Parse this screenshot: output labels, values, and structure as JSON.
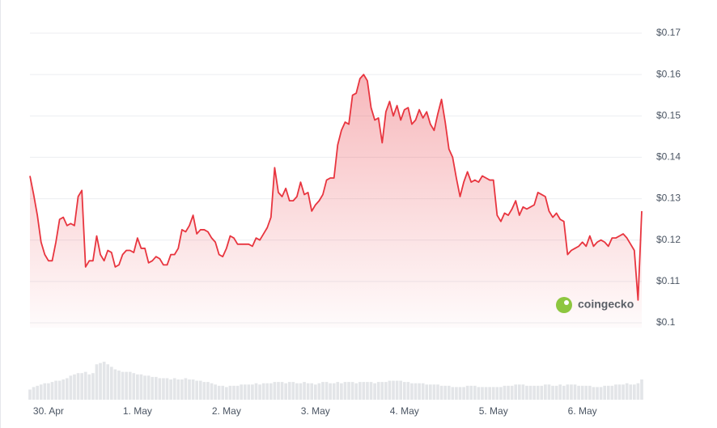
{
  "chart_data": {
    "type": "line",
    "watermark": "coingecko",
    "categories": [
      null,
      null,
      null,
      null,
      null,
      "30. Apr",
      null,
      null,
      null,
      null,
      null,
      null,
      null,
      null,
      null,
      null,
      null,
      null,
      null,
      null,
      null,
      null,
      null,
      null,
      null,
      null,
      null,
      null,
      null,
      "1. May",
      null,
      null,
      null,
      null,
      null,
      null,
      null,
      null,
      null,
      null,
      null,
      null,
      null,
      null,
      null,
      null,
      null,
      null,
      null,
      null,
      null,
      null,
      null,
      "2. May",
      null,
      null,
      null,
      null,
      null,
      null,
      null,
      null,
      null,
      null,
      null,
      null,
      null,
      null,
      null,
      null,
      null,
      null,
      null,
      null,
      null,
      null,
      null,
      "3. May",
      null,
      null,
      null,
      null,
      null,
      null,
      null,
      null,
      null,
      null,
      null,
      null,
      null,
      null,
      null,
      null,
      null,
      null,
      null,
      null,
      null,
      null,
      null,
      "4. May",
      null,
      null,
      null,
      null,
      null,
      null,
      null,
      null,
      null,
      null,
      null,
      null,
      null,
      null,
      null,
      null,
      null,
      null,
      null,
      null,
      null,
      null,
      null,
      "5. May",
      null,
      null,
      null,
      null,
      null,
      null,
      null,
      null,
      null,
      null,
      null,
      null,
      null,
      null,
      null,
      null,
      null,
      null,
      null,
      null,
      null,
      null,
      null,
      "6. May",
      null,
      null,
      null,
      null,
      null,
      null,
      null,
      null,
      null,
      null,
      null,
      null,
      null,
      null,
      null,
      null
    ],
    "series": [
      {
        "color": "#e8353f",
        "values": [
          0.1355,
          0.131,
          0.126,
          0.1195,
          0.1165,
          0.115,
          0.115,
          0.1195,
          0.125,
          0.1255,
          0.1235,
          0.124,
          0.1235,
          0.1305,
          0.132,
          0.1135,
          0.115,
          0.115,
          0.121,
          0.1165,
          0.115,
          0.1175,
          0.117,
          0.1135,
          0.114,
          0.1165,
          0.1175,
          0.1175,
          0.117,
          0.1205,
          0.118,
          0.118,
          0.1145,
          0.115,
          0.116,
          0.1155,
          0.114,
          0.114,
          0.1165,
          0.1165,
          0.118,
          0.1225,
          0.122,
          0.1235,
          0.126,
          0.1215,
          0.1225,
          0.1225,
          0.122,
          0.1205,
          0.1195,
          0.1165,
          0.116,
          0.118,
          0.121,
          0.1205,
          0.119,
          0.119,
          0.119,
          0.119,
          0.1185,
          0.1205,
          0.12,
          0.1215,
          0.123,
          0.1255,
          0.1375,
          0.1315,
          0.1305,
          0.1325,
          0.1295,
          0.1295,
          0.1305,
          0.134,
          0.131,
          0.1315,
          0.127,
          0.1285,
          0.1295,
          0.131,
          0.1345,
          0.135,
          0.135,
          0.143,
          0.1465,
          0.1485,
          0.148,
          0.155,
          0.1555,
          0.159,
          0.16,
          0.1585,
          0.152,
          0.149,
          0.1495,
          0.1435,
          0.151,
          0.1535,
          0.15,
          0.1525,
          0.149,
          0.1515,
          0.152,
          0.148,
          0.149,
          0.1515,
          0.1495,
          0.151,
          0.148,
          0.1465,
          0.1505,
          0.154,
          0.1485,
          0.142,
          0.14,
          0.135,
          0.1305,
          0.134,
          0.1365,
          0.134,
          0.1345,
          0.134,
          0.1355,
          0.135,
          0.1345,
          0.1345,
          0.126,
          0.1245,
          0.1265,
          0.126,
          0.1275,
          0.1295,
          0.126,
          0.128,
          0.1275,
          0.128,
          0.1285,
          0.1315,
          0.131,
          0.1305,
          0.127,
          0.1255,
          0.1265,
          0.125,
          0.1245,
          0.1165,
          0.1175,
          0.118,
          0.1185,
          0.1195,
          0.1185,
          0.121,
          0.1185,
          0.1195,
          0.12,
          0.1195,
          0.1185,
          0.1205,
          0.1205,
          0.121,
          0.1215,
          0.1205,
          0.119,
          0.1175,
          0.1055,
          0.127
        ]
      },
      {
        "color": "#e3e5e8",
        "axis": "y2",
        "values": [
          8,
          10,
          11,
          12,
          13,
          13,
          14,
          15,
          15,
          16,
          17,
          19,
          20,
          21,
          21,
          22,
          20,
          21,
          28,
          29,
          30,
          28,
          26,
          24,
          23,
          22,
          22,
          22,
          21,
          20,
          20,
          19,
          19,
          18,
          18,
          17,
          17,
          17,
          16,
          17,
          16,
          16,
          17,
          16,
          16,
          15,
          15,
          14,
          14,
          13,
          12,
          11,
          11,
          10,
          11,
          11,
          11,
          12,
          12,
          12,
          12,
          13,
          12,
          13,
          13,
          13,
          14,
          14,
          14,
          13,
          14,
          14,
          13,
          13,
          14,
          13,
          13,
          12,
          13,
          14,
          14,
          13,
          13,
          14,
          13,
          14,
          14,
          14,
          13,
          14,
          14,
          14,
          14,
          13,
          14,
          14,
          14,
          15,
          15,
          15,
          15,
          14,
          14,
          13,
          13,
          13,
          13,
          12,
          12,
          12,
          12,
          11,
          11,
          11,
          10,
          10,
          10,
          10,
          11,
          11,
          11,
          10,
          10,
          10,
          10,
          10,
          10,
          10,
          11,
          11,
          11,
          12,
          12,
          12,
          11,
          11,
          11,
          11,
          11,
          12,
          12,
          11,
          11,
          12,
          11,
          12,
          12,
          12,
          11,
          11,
          11,
          11,
          10,
          10,
          10,
          11,
          11,
          11,
          12,
          12,
          12,
          13,
          12,
          12,
          13,
          16
        ]
      }
    ],
    "ylim": [
      0.1,
      0.17
    ],
    "yticks": [
      {
        "value": 0.1,
        "label": "$0.1"
      },
      {
        "value": 0.11,
        "label": "$0.11"
      },
      {
        "value": 0.12,
        "label": "$0.12"
      },
      {
        "value": 0.13,
        "label": "$0.13"
      },
      {
        "value": 0.14,
        "label": "$0.14"
      },
      {
        "value": 0.15,
        "label": "$0.15"
      },
      {
        "value": 0.16,
        "label": "$0.16"
      },
      {
        "value": 0.17,
        "label": "$0.17"
      }
    ],
    "y2lim": [
      0,
      32
    ],
    "grid": true
  }
}
